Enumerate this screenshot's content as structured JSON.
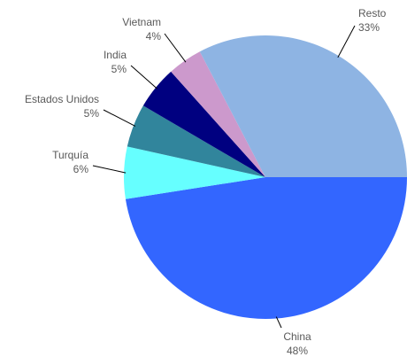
{
  "chart_data": {
    "type": "pie",
    "categories": [
      "China",
      "Turquía",
      "Estados Unidos",
      "India",
      "Vietnam",
      "Resto"
    ],
    "values": [
      48,
      6,
      5,
      5,
      4,
      33
    ],
    "value_labels": [
      "48%",
      "6%",
      "5%",
      "5%",
      "4%",
      "33%"
    ],
    "colors": [
      "#3366ff",
      "#66ffff",
      "#31859c",
      "#000080",
      "#cc99cc",
      "#8eb4e3"
    ]
  }
}
